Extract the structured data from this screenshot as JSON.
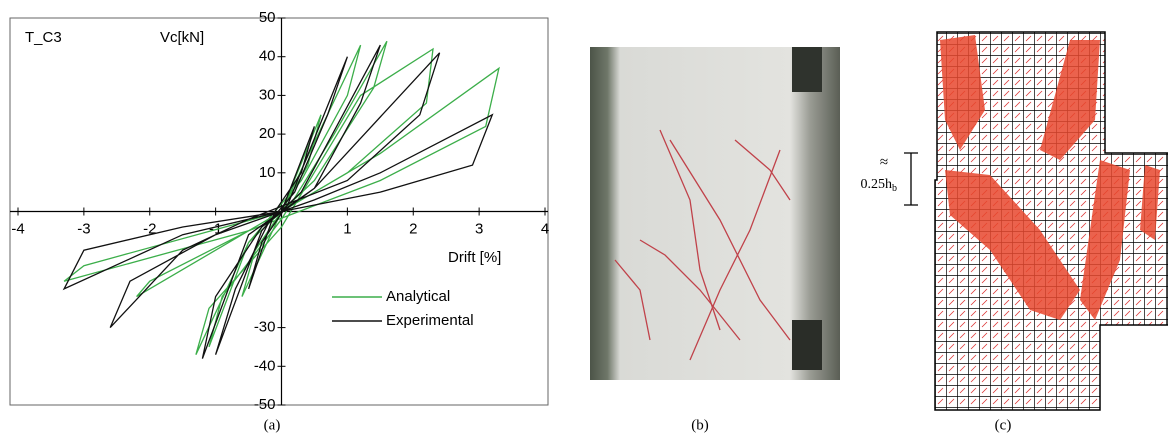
{
  "chart_data": {
    "type": "line",
    "title": "T_C3",
    "y_label": "Vc[kN]",
    "x_label": "Drift [%]",
    "caption": "(a)",
    "xlim": [
      -4,
      4
    ],
    "ylim": [
      -50,
      50
    ],
    "xticks": [
      -4,
      -3,
      -2,
      -1,
      1,
      2,
      3,
      4
    ],
    "yticks": [
      -50,
      -40,
      -30,
      10,
      20,
      30,
      40,
      50
    ],
    "legend": "lower right",
    "series": [
      {
        "name": "Analytical",
        "color": "#3cae4a",
        "x": [
          0,
          0.6,
          0.4,
          0,
          -0.6,
          -0.4,
          0,
          1.2,
          1.0,
          0.3,
          -0.5,
          -1.1,
          -0.9,
          0,
          0.8,
          1.6,
          1.4,
          0.5,
          -0.5,
          -1.3,
          -1.1,
          0,
          1.2,
          2.3,
          2.2,
          1.0,
          -0.5,
          -2.2,
          -2.0,
          -0.5,
          1.5,
          3.3,
          3.1,
          1.5,
          -0.5,
          -3.3,
          -3.0,
          0
        ],
        "values": [
          0,
          25,
          12,
          0,
          -22,
          -10,
          0,
          43,
          30,
          8,
          -8,
          -35,
          -22,
          -2,
          20,
          44,
          32,
          8,
          -8,
          -37,
          -25,
          -4,
          30,
          42,
          28,
          10,
          -5,
          -22,
          -18,
          -5,
          15,
          37,
          22,
          8,
          -5,
          -18,
          -14,
          0
        ]
      },
      {
        "name": "Experimental",
        "color": "#111111",
        "x": [
          0,
          0.5,
          0.3,
          -0.1,
          -0.5,
          -0.3,
          0.1,
          1.0,
          0.7,
          0.2,
          -0.3,
          -1.0,
          -0.7,
          -0.2,
          0.3,
          1.5,
          1.2,
          0.5,
          -0.5,
          -1.2,
          -1.0,
          -0.3,
          0.5,
          2.4,
          2.1,
          1.0,
          -0.5,
          -1.5,
          -2.6,
          -2.3,
          -1.0,
          0.5,
          1.5,
          3.2,
          2.9,
          1.5,
          0,
          -1.5,
          -3.3,
          -3.0,
          -1.5,
          0
        ],
        "values": [
          0,
          22,
          10,
          0,
          -20,
          -8,
          2,
          40,
          25,
          5,
          -5,
          -37,
          -20,
          -3,
          5,
          43,
          28,
          6,
          -6,
          -38,
          -22,
          -4,
          6,
          41,
          25,
          8,
          -2,
          -10,
          -30,
          -18,
          -6,
          3,
          10,
          25,
          12,
          5,
          0,
          -6,
          -20,
          -10,
          -4,
          0
        ]
      }
    ]
  },
  "figure": {
    "captions": [
      "(b)",
      "(c)"
    ],
    "annotation": {
      "symbol": "≈",
      "label": "0.25h",
      "subscript": "b"
    }
  }
}
